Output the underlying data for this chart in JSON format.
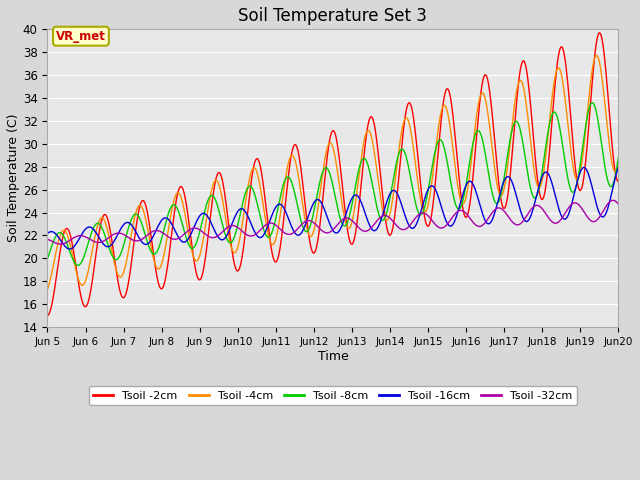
{
  "title": "Soil Temperature Set 3",
  "xlabel": "Time",
  "ylabel": "Soil Temperature (C)",
  "ylim": [
    14,
    40
  ],
  "yticks": [
    14,
    16,
    18,
    20,
    22,
    24,
    26,
    28,
    30,
    32,
    34,
    36,
    38,
    40
  ],
  "fig_bg_color": "#d8d8d8",
  "plot_bg_color": "#e8e8e8",
  "grid_color": "#ffffff",
  "line_colors": {
    "Tsoil -2cm": "#ff0000",
    "Tsoil -4cm": "#ff8c00",
    "Tsoil -8cm": "#00cc00",
    "Tsoil -16cm": "#0000dd",
    "Tsoil -32cm": "#aa00aa"
  },
  "annotation_text": "VR_met",
  "annotation_color": "#cc0000",
  "annotation_bg": "#ffffcc",
  "annotation_border": "#aaaa00",
  "n_days": 15,
  "pts_per_day": 48,
  "trend_2cm_base": 18.5,
  "trend_2cm_slope": 1.0,
  "trend_4cm_base": 19.5,
  "trend_4cm_slope": 0.9,
  "trend_8cm_base": 20.5,
  "trend_8cm_slope": 0.65,
  "trend_16cm_base": 21.5,
  "trend_16cm_slope": 0.3,
  "trend_32cm_base": 21.5,
  "trend_32cm_slope": 0.18,
  "amp_2cm_base": 3.5,
  "amp_2cm_slope": 0.22,
  "amp_4cm_base": 2.5,
  "amp_4cm_slope": 0.19,
  "amp_8cm_base": 1.5,
  "amp_8cm_slope": 0.16,
  "amp_16cm_base": 0.8,
  "amp_16cm_slope": 0.1,
  "amp_32cm_base": 0.3,
  "amp_32cm_slope": 0.04,
  "phase_2cm": -1.5707963,
  "phase_4cm": -1.0707963,
  "phase_8cm": -0.3707963,
  "phase_16cm": 1.0,
  "phase_32cm": 2.5,
  "xtick_labels": [
    "Jun 5",
    "Jun 6",
    "Jun 7",
    "Jun 8",
    "Jun 9",
    "Jun 10",
    "Jun 11",
    "Jun 12",
    "Jun 13",
    "Jun 14",
    "Jun 15",
    "Jun 16",
    "Jun 17",
    "Jun 18",
    "Jun 19",
    "Jun 20"
  ],
  "linewidth": 1.0
}
